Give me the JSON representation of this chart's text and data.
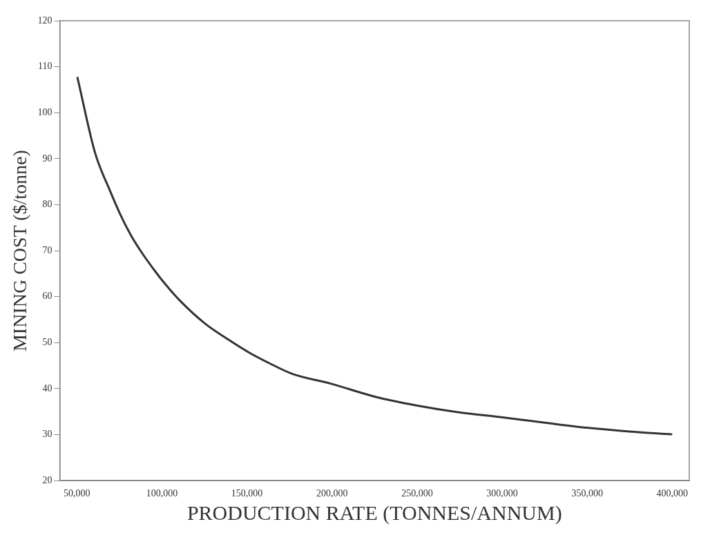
{
  "chart_data": {
    "type": "line",
    "xlabel": "PRODUCTION RATE (TONNES/ANNUM)",
    "ylabel": "MINING COST ($/tonne)",
    "series": [
      {
        "color": "#333333",
        "x": [
          50400,
          60700,
          69300,
          75800,
          82200,
          88700,
          95100,
          100500,
          110200,
          125200,
          138100,
          151500,
          163900,
          176800,
          199200,
          225800,
          249000,
          274000,
          299400,
          325100,
          349900,
          374600,
          399500
        ],
        "values": [
          107.6,
          91.3,
          83.2,
          77.7,
          73.1,
          69.3,
          66.0,
          63.4,
          59.3,
          54.2,
          50.9,
          47.8,
          45.4,
          43.2,
          41.1,
          38.2,
          36.4,
          34.9,
          33.8,
          32.6,
          31.5,
          30.7,
          30.1
        ]
      }
    ],
    "xlim": [
      40000,
      410000
    ],
    "xticks": [
      {
        "value": 50000,
        "label": "50,000"
      },
      {
        "value": 100000,
        "label": "100,000"
      },
      {
        "value": 150000,
        "label": "150,000"
      },
      {
        "value": 200000,
        "label": "200,000"
      },
      {
        "value": 250000,
        "label": "250,000"
      },
      {
        "value": 300000,
        "label": "300,000"
      },
      {
        "value": 350000,
        "label": "350,000"
      },
      {
        "value": 400000,
        "label": "400,000"
      }
    ],
    "ylim": [
      20,
      120
    ],
    "yticks": [
      20,
      30,
      40,
      50,
      60,
      70,
      80,
      90,
      100,
      110,
      120
    ],
    "grid": false,
    "legend": false,
    "marker": "none",
    "line_style": "solid"
  }
}
